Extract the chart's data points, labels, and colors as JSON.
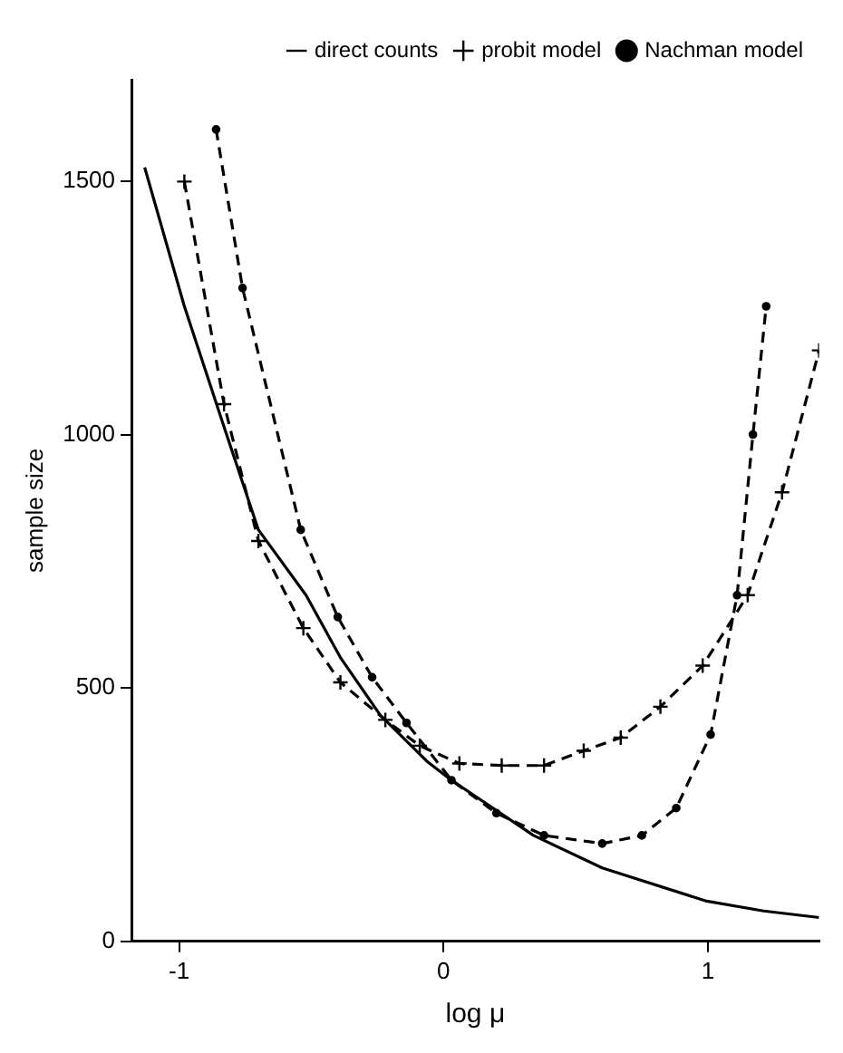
{
  "chart_data": {
    "type": "line",
    "xlabel": "log μ",
    "ylabel": "sample size",
    "xlim": [
      -1.18,
      1.42
    ],
    "ylim": [
      0,
      1700
    ],
    "xticks": [
      -1,
      0,
      1
    ],
    "yticks": [
      0,
      500,
      1000,
      1500
    ],
    "grid": false,
    "legend": "top right",
    "series": [
      {
        "name": "direct counts",
        "color": "#000000",
        "line_style": "solid",
        "marker": "none",
        "x": [
          -1.13,
          -0.98,
          -0.83,
          -0.7,
          -0.52,
          -0.39,
          -0.24,
          -0.06,
          0.03,
          0.34,
          0.6,
          0.99,
          1.21,
          1.42
        ],
        "values": [
          1527,
          1253,
          1015,
          812,
          683,
          560,
          447,
          354,
          318,
          209,
          145,
          80,
          60,
          47
        ]
      },
      {
        "name": "probit model",
        "color": "#000000",
        "line_style": "dashed",
        "marker": "cross",
        "x": [
          -0.98,
          -0.83,
          -0.7,
          -0.53,
          -0.39,
          -0.22,
          -0.09,
          0.06,
          0.22,
          0.38,
          0.53,
          0.67,
          0.82,
          0.98,
          1.15,
          1.28,
          1.42
        ],
        "values": [
          1499,
          1060,
          790,
          618,
          511,
          437,
          386,
          351,
          347,
          347,
          376,
          402,
          463,
          544,
          683,
          886,
          1166
        ]
      },
      {
        "name": "Nachman model",
        "color": "#000000",
        "line_style": "dashed",
        "marker": "circle",
        "x": [
          -0.86,
          -0.76,
          -0.54,
          -0.4,
          -0.27,
          -0.14,
          0.03,
          0.2,
          0.38,
          0.6,
          0.75,
          0.88,
          1.01,
          1.11,
          1.17,
          1.22
        ],
        "values": [
          1602,
          1289,
          812,
          640,
          521,
          431,
          318,
          253,
          209,
          193,
          209,
          263,
          408,
          683,
          1000,
          1253
        ]
      }
    ]
  }
}
